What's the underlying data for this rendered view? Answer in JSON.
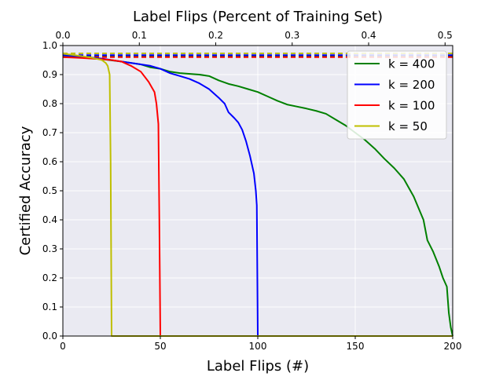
{
  "chart_data": {
    "type": "line",
    "title": "Label Flips (Percent of Training Set)",
    "xlabel": "Label Flips (#)",
    "ylabel": "Certified Accuracy",
    "xlim": [
      0,
      200
    ],
    "ylim": [
      0,
      1.0
    ],
    "x_ticks": [
      "0",
      "50",
      "100",
      "150",
      "200"
    ],
    "y_ticks": [
      "0.0",
      "0.1",
      "0.2",
      "0.3",
      "0.4",
      "0.5",
      "0.6",
      "0.7",
      "0.8",
      "0.9",
      "1.0"
    ],
    "top_xlim": [
      0,
      0.51
    ],
    "top_x_ticks": [
      "0.0",
      "0.1",
      "0.2",
      "0.3",
      "0.4",
      "0.5"
    ],
    "grid": true,
    "legend_position": "top-right",
    "series": [
      {
        "name": "k = 400",
        "color": "#008000",
        "baseline": 0.963,
        "points": [
          [
            0,
            0.963
          ],
          [
            10,
            0.958
          ],
          [
            20,
            0.953
          ],
          [
            30,
            0.945
          ],
          [
            40,
            0.935
          ],
          [
            45,
            0.925
          ],
          [
            50,
            0.92
          ],
          [
            55,
            0.91
          ],
          [
            60,
            0.905
          ],
          [
            70,
            0.9
          ],
          [
            75,
            0.895
          ],
          [
            80,
            0.88
          ],
          [
            85,
            0.868
          ],
          [
            90,
            0.86
          ],
          [
            95,
            0.85
          ],
          [
            100,
            0.84
          ],
          [
            105,
            0.825
          ],
          [
            110,
            0.81
          ],
          [
            115,
            0.797
          ],
          [
            120,
            0.79
          ],
          [
            125,
            0.783
          ],
          [
            130,
            0.775
          ],
          [
            135,
            0.765
          ],
          [
            140,
            0.745
          ],
          [
            145,
            0.725
          ],
          [
            150,
            0.7
          ],
          [
            155,
            0.675
          ],
          [
            160,
            0.645
          ],
          [
            165,
            0.61
          ],
          [
            170,
            0.578
          ],
          [
            175,
            0.54
          ],
          [
            180,
            0.48
          ],
          [
            185,
            0.4
          ],
          [
            187,
            0.33
          ],
          [
            190,
            0.29
          ],
          [
            193,
            0.24
          ],
          [
            195,
            0.2
          ],
          [
            197,
            0.17
          ],
          [
            198,
            0.08
          ],
          [
            199,
            0.03
          ],
          [
            200,
            0.0
          ]
        ]
      },
      {
        "name": "k = 200",
        "color": "#0000ff",
        "baseline": 0.967,
        "points": [
          [
            0,
            0.967
          ],
          [
            10,
            0.962
          ],
          [
            20,
            0.955
          ],
          [
            30,
            0.945
          ],
          [
            40,
            0.935
          ],
          [
            45,
            0.93
          ],
          [
            50,
            0.92
          ],
          [
            55,
            0.905
          ],
          [
            60,
            0.895
          ],
          [
            65,
            0.885
          ],
          [
            70,
            0.87
          ],
          [
            75,
            0.85
          ],
          [
            80,
            0.82
          ],
          [
            83,
            0.8
          ],
          [
            85,
            0.77
          ],
          [
            88,
            0.75
          ],
          [
            90,
            0.735
          ],
          [
            92,
            0.71
          ],
          [
            94,
            0.67
          ],
          [
            96,
            0.62
          ],
          [
            98,
            0.56
          ],
          [
            99,
            0.5
          ],
          [
            99.5,
            0.45
          ],
          [
            100,
            0.0
          ]
        ]
      },
      {
        "name": "k = 100",
        "color": "#ff0000",
        "baseline": 0.96,
        "points": [
          [
            0,
            0.96
          ],
          [
            10,
            0.957
          ],
          [
            20,
            0.953
          ],
          [
            25,
            0.95
          ],
          [
            30,
            0.945
          ],
          [
            35,
            0.93
          ],
          [
            40,
            0.91
          ],
          [
            44,
            0.875
          ],
          [
            47,
            0.84
          ],
          [
            48,
            0.8
          ],
          [
            49,
            0.73
          ],
          [
            49.5,
            0.4
          ],
          [
            50,
            0.0
          ]
        ]
      },
      {
        "name": "k = 50",
        "color": "#bfbf00",
        "baseline": 0.973,
        "points": [
          [
            0,
            0.972
          ],
          [
            5,
            0.968
          ],
          [
            10,
            0.963
          ],
          [
            15,
            0.958
          ],
          [
            20,
            0.95
          ],
          [
            22,
            0.94
          ],
          [
            23,
            0.93
          ],
          [
            24,
            0.9
          ],
          [
            24.5,
            0.6
          ],
          [
            25,
            0.0
          ],
          [
            200,
            0.0
          ]
        ]
      }
    ]
  }
}
